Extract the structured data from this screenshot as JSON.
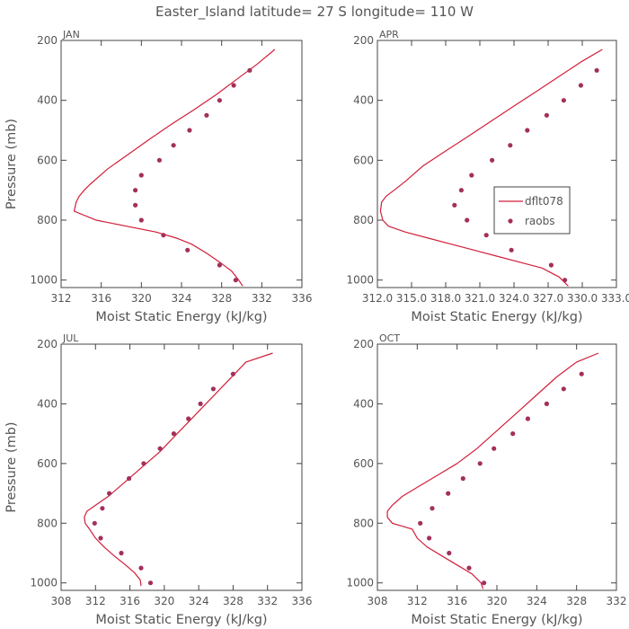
{
  "figure_title": "Easter_Island   latitude= 27 S longitude= 110 W",
  "colors": {
    "model": "#d11f3a",
    "obs": "#a3305b",
    "axis": "#444444",
    "text": "#555555"
  },
  "legend": {
    "model_label": "dflt078",
    "obs_label": "raobs"
  },
  "chart_data": [
    {
      "type": "line",
      "panel_label": "JAN",
      "xlabel": "Moist Static Energy (kJ/kg)",
      "ylabel": "Pressure (mb)",
      "xlim": [
        312,
        336
      ],
      "ylim": [
        1025,
        200
      ],
      "xticks": [
        312,
        316,
        320,
        324,
        328,
        332,
        336
      ],
      "xtick_labels": [
        "312",
        "316",
        "320",
        "324",
        "328",
        "332",
        "336"
      ],
      "yticks": [
        200,
        400,
        600,
        800,
        1000
      ],
      "ytick_labels": [
        "200",
        "400",
        "600",
        "800",
        "1000"
      ],
      "series": [
        {
          "name": "dflt078",
          "kind": "line",
          "x": [
            333.3,
            331.5,
            329.5,
            327.5,
            325.3,
            323,
            320.8,
            318.7,
            316.6,
            314.9,
            314.3,
            313.8,
            313.5,
            313.3,
            315.5,
            318.5,
            321.5,
            323.5,
            325,
            326.5,
            327.8,
            329,
            329.7,
            330.1
          ],
          "y": [
            230,
            280,
            330,
            380,
            430,
            480,
            530,
            580,
            630,
            680,
            700,
            720,
            740,
            770,
            800,
            820,
            840,
            860,
            880,
            910,
            940,
            970,
            1000,
            1020
          ]
        },
        {
          "name": "raobs",
          "kind": "points",
          "x": [
            330.8,
            329.2,
            327.8,
            326.5,
            324.8,
            323.2,
            321.8,
            320,
            319.4,
            319.4,
            320,
            322.2,
            324.6,
            327.8,
            329.4
          ],
          "y": [
            300,
            350,
            400,
            450,
            500,
            550,
            600,
            650,
            700,
            750,
            800,
            850,
            900,
            950,
            1000
          ]
        }
      ]
    },
    {
      "type": "line",
      "panel_label": "APR",
      "xlabel": "Moist Static Energy (kJ/kg)",
      "ylabel": "",
      "xlim": [
        312.03,
        333.03
      ],
      "ylim": [
        1025,
        200
      ],
      "xticks": [
        312.03,
        315.03,
        318.03,
        321.03,
        324.03,
        327.03,
        330.03,
        333.03
      ],
      "xtick_labels": [
        "312.0",
        "315.0",
        "318.0",
        "321.0",
        "324.0",
        "327.0",
        "330.0",
        "333.0"
      ],
      "yticks": [
        200,
        400,
        600,
        800,
        1000
      ],
      "ytick_labels": [
        "200",
        "400",
        "600",
        "800",
        "1000"
      ],
      "legend": true,
      "series": [
        {
          "name": "dflt078",
          "kind": "line",
          "x": [
            331.8,
            330,
            328,
            326,
            324,
            322,
            320,
            318,
            316,
            314.5,
            313.5,
            312.8,
            312.4,
            312.3,
            312.5,
            313,
            314.5,
            316.5,
            318.5,
            320.5,
            322.5,
            324.5,
            326.5,
            328,
            328.8
          ],
          "y": [
            230,
            270,
            320,
            370,
            420,
            470,
            520,
            570,
            620,
            670,
            700,
            720,
            740,
            770,
            800,
            820,
            840,
            860,
            880,
            900,
            920,
            940,
            960,
            990,
            1020
          ]
        },
        {
          "name": "raobs",
          "kind": "points",
          "x": [
            331.3,
            329.9,
            328.4,
            326.9,
            325.2,
            323.7,
            322.1,
            320.3,
            319.4,
            318.8,
            319.9,
            321.6,
            323.8,
            327.3,
            328.5
          ],
          "y": [
            300,
            350,
            400,
            450,
            500,
            550,
            600,
            650,
            700,
            750,
            800,
            850,
            900,
            950,
            1000
          ]
        }
      ]
    },
    {
      "type": "line",
      "panel_label": "JUL",
      "xlabel": "Moist Static Energy (kJ/kg)",
      "ylabel": "Pressure (mb)",
      "xlim": [
        308,
        336
      ],
      "ylim": [
        1025,
        200
      ],
      "xticks": [
        308,
        312,
        316,
        320,
        324,
        328,
        332,
        336
      ],
      "xtick_labels": [
        "308",
        "312",
        "316",
        "320",
        "324",
        "328",
        "332",
        "336"
      ],
      "yticks": [
        200,
        400,
        600,
        800,
        1000
      ],
      "ytick_labels": [
        "200",
        "400",
        "600",
        "800",
        "1000"
      ],
      "series": [
        {
          "name": "dflt078",
          "kind": "line",
          "x": [
            332.6,
            329.5,
            327.5,
            325.5,
            323.5,
            321.5,
            319.5,
            317.5,
            315.5,
            313.5,
            312,
            311,
            310.7,
            310.8,
            311.3,
            312,
            313,
            314.2,
            315.5,
            316.5,
            317.2,
            317.3
          ],
          "y": [
            230,
            260,
            320,
            380,
            440,
            500,
            560,
            610,
            660,
            710,
            740,
            760,
            780,
            800,
            820,
            850,
            880,
            910,
            940,
            965,
            990,
            1010
          ]
        },
        {
          "name": "raobs",
          "kind": "points",
          "x": [
            328,
            325.7,
            324.2,
            322.8,
            321.1,
            319.5,
            317.6,
            315.9,
            313.6,
            312.8,
            311.9,
            312.6,
            315,
            317.3,
            318.4
          ],
          "y": [
            300,
            350,
            400,
            450,
            500,
            550,
            600,
            650,
            700,
            750,
            800,
            850,
            900,
            950,
            1000
          ]
        }
      ]
    },
    {
      "type": "line",
      "panel_label": "OCT",
      "xlabel": "Moist Static Energy (kJ/kg)",
      "ylabel": "",
      "xlim": [
        308,
        332
      ],
      "ylim": [
        1025,
        200
      ],
      "xticks": [
        308,
        312,
        316,
        320,
        324,
        328,
        332
      ],
      "xtick_labels": [
        "308",
        "312",
        "316",
        "320",
        "324",
        "328",
        "332"
      ],
      "yticks": [
        200,
        400,
        600,
        800,
        1000
      ],
      "ytick_labels": [
        "200",
        "400",
        "600",
        "800",
        "1000"
      ],
      "series": [
        {
          "name": "dflt078",
          "kind": "line",
          "x": [
            330.2,
            328,
            326,
            324,
            322,
            320,
            318,
            316,
            314,
            312,
            310.5,
            309.5,
            309,
            309,
            309.5,
            310.5,
            311.5,
            312,
            313,
            314.5,
            316,
            317.5,
            318.4,
            318.6
          ],
          "y": [
            230,
            260,
            310,
            370,
            430,
            490,
            550,
            600,
            640,
            680,
            710,
            740,
            760,
            780,
            800,
            810,
            820,
            850,
            880,
            910,
            940,
            970,
            1000,
            1020
          ]
        },
        {
          "name": "raobs",
          "kind": "points",
          "x": [
            328.5,
            326.7,
            325,
            323.1,
            321.6,
            319.7,
            318.3,
            316.6,
            315.1,
            313.5,
            312.3,
            313.2,
            315.2,
            317.2,
            318.7
          ],
          "y": [
            300,
            350,
            400,
            450,
            500,
            550,
            600,
            650,
            700,
            750,
            800,
            850,
            900,
            950,
            1000
          ]
        }
      ]
    }
  ]
}
